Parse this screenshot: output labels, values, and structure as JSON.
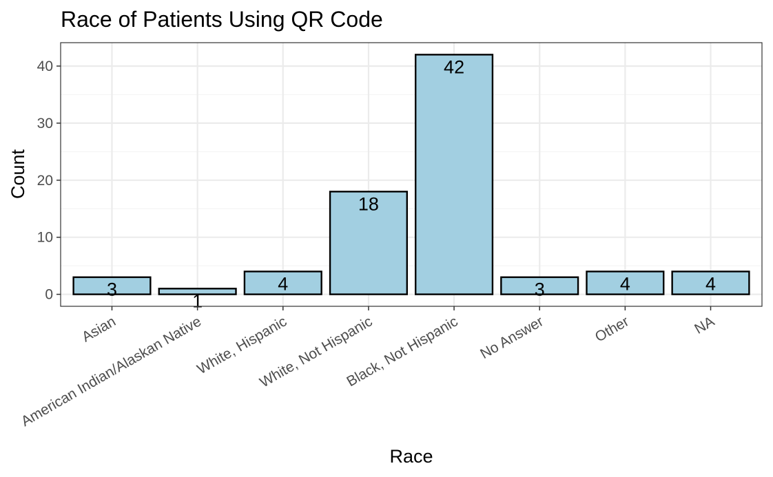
{
  "chart_data": {
    "type": "bar",
    "title": "Race of Patients Using QR Code",
    "xlabel": "Race",
    "ylabel": "Count",
    "categories": [
      "Asian",
      "American Indian/Alaskan Native",
      "White, Hispanic",
      "White, Not Hispanic",
      "Black, Not Hispanic",
      "No Answer",
      "Other",
      "NA"
    ],
    "values": [
      3,
      1,
      4,
      18,
      42,
      3,
      4,
      4
    ],
    "y_ticks": [
      0,
      10,
      20,
      30,
      40
    ],
    "ylim": [
      -2.1,
      44.1
    ],
    "grid": true,
    "theme": "bw",
    "colors": {
      "bar_fill": "#a2cfe1",
      "bar_stroke": "#000000",
      "panel_border": "#333333",
      "grid_major": "#ebebeb",
      "grid_minor": "#f5f5f5"
    }
  }
}
